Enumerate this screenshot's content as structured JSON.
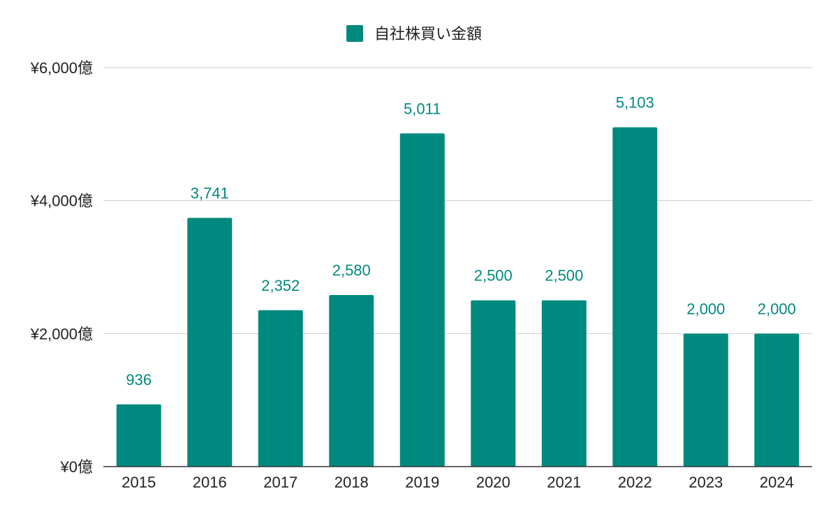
{
  "chart_data": {
    "type": "bar",
    "title": "",
    "xlabel": "",
    "ylabel": "",
    "legend": {
      "placement": "top-center",
      "entries": [
        "自社株買い金額"
      ]
    },
    "series": [
      {
        "name": "自社株買い金額",
        "color": "#00897f",
        "values": [
          936,
          3741,
          2352,
          2580,
          5011,
          2500,
          2500,
          5103,
          2000,
          2000
        ]
      }
    ],
    "categories": [
      "2015",
      "2016",
      "2017",
      "2018",
      "2019",
      "2020",
      "2021",
      "2022",
      "2023",
      "2024"
    ],
    "data_labels": [
      "936",
      "3,741",
      "2,352",
      "2,580",
      "5,011",
      "2,500",
      "2,500",
      "5,103",
      "2,000",
      "2,000"
    ],
    "ylim": [
      0,
      6000
    ],
    "yticks": [
      0,
      2000,
      4000,
      6000
    ],
    "ytick_labels": [
      "¥0億",
      "¥2,000億",
      "¥4,000億",
      "¥6,000億"
    ],
    "grid": true,
    "colors": {
      "bar": "#00897f",
      "data_label": "#00897f",
      "grid": "#cccccc",
      "axis": "#333333",
      "text": "#222222"
    }
  }
}
